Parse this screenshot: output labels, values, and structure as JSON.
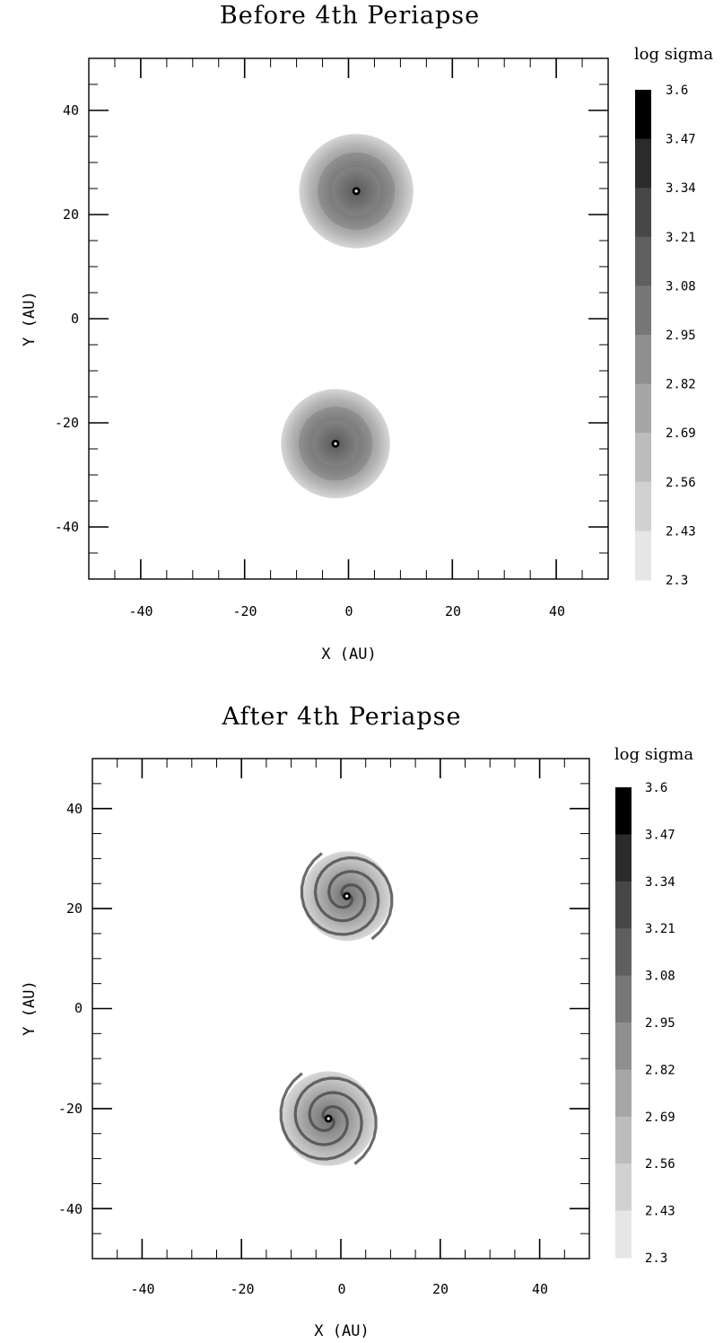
{
  "panels": [
    {
      "title": "Before 4th Periapse",
      "xlabel": "X (AU)",
      "ylabel": "Y (AU)",
      "xlim": [
        -50,
        50
      ],
      "ylim": [
        -50,
        50
      ],
      "x_ticks": [
        "-40",
        "-20",
        "0",
        "20",
        "40"
      ],
      "y_ticks": [
        "40",
        "20",
        "0",
        "-20",
        "-40"
      ],
      "colorbar_title": "log sigma",
      "colorbar_levels": [
        "3.6",
        "3.47",
        "3.34",
        "3.21",
        "3.08",
        "2.95",
        "2.82",
        "2.69",
        "2.56",
        "2.43",
        "2.3"
      ],
      "disks": [
        {
          "x": 1.5,
          "y": 24.5,
          "radius": 11,
          "morphology": "smooth"
        },
        {
          "x": -2.5,
          "y": -24,
          "radius": 10.5,
          "morphology": "smooth"
        }
      ]
    },
    {
      "title": "After 4th Periapse",
      "xlabel": "X (AU)",
      "ylabel": "Y (AU)",
      "xlim": [
        -50,
        50
      ],
      "ylim": [
        -50,
        50
      ],
      "x_ticks": [
        "-40",
        "-20",
        "0",
        "20",
        "40"
      ],
      "y_ticks": [
        "40",
        "20",
        "0",
        "-20",
        "-40"
      ],
      "colorbar_title": "log sigma",
      "colorbar_levels": [
        "3.6",
        "3.47",
        "3.34",
        "3.21",
        "3.08",
        "2.95",
        "2.82",
        "2.69",
        "2.56",
        "2.43",
        "2.3"
      ],
      "disks": [
        {
          "x": 1.2,
          "y": 22.5,
          "radius": 9,
          "morphology": "spiral"
        },
        {
          "x": -2.5,
          "y": -22,
          "radius": 9.5,
          "morphology": "spiral"
        }
      ]
    }
  ],
  "colorbar_colors": [
    "#000000",
    "#2b2b2b",
    "#474747",
    "#5f5f5f",
    "#777777",
    "#8f8f8f",
    "#a6a6a6",
    "#bcbcbc",
    "#d1d1d1",
    "#e6e6e6"
  ]
}
